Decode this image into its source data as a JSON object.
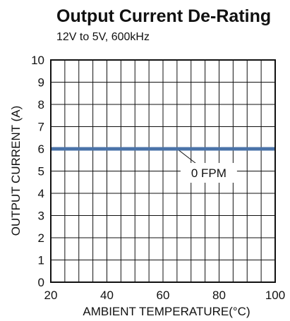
{
  "chart_data": {
    "type": "line",
    "title": "Output Current De-Rating",
    "subtitle": "12V to 5V, 600kHz",
    "xlabel": "AMBIENT TEMPERATURE(°C)",
    "ylabel": "OUTPUT CURRENT (A)",
    "xlim": [
      20,
      100
    ],
    "ylim": [
      0,
      10
    ],
    "x_ticks": [
      "20",
      "40",
      "60",
      "80",
      "100"
    ],
    "y_ticks": [
      "0",
      "1",
      "2",
      "3",
      "4",
      "5",
      "6",
      "7",
      "8",
      "9",
      "10"
    ],
    "grid": true,
    "line_color": "#4a73a8",
    "series": [
      {
        "x": [
          20,
          100
        ],
        "y": [
          6,
          6
        ]
      }
    ],
    "annotations": [
      {
        "text": "0 FPM",
        "x": 65,
        "y": 6
      }
    ]
  }
}
